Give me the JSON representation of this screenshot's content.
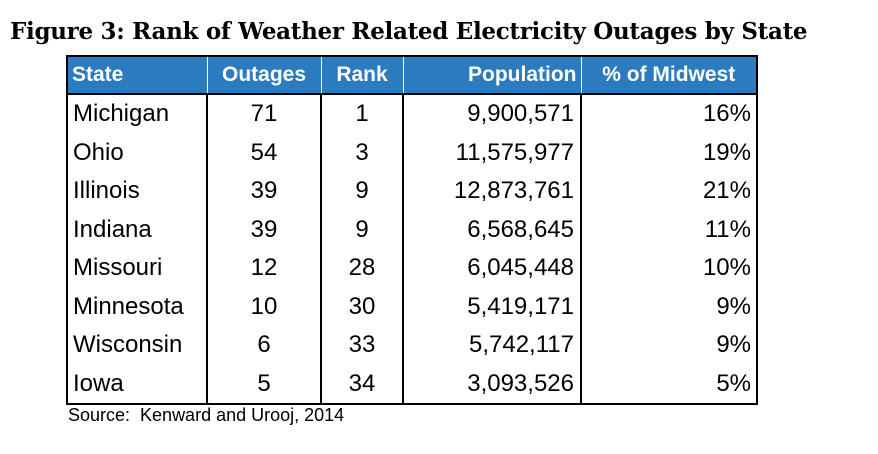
{
  "chart_data": {
    "type": "table",
    "title": "Figure 3: Rank of Weather Related Electricity Outages by State",
    "header_color": "#2d7bbf",
    "columns": [
      "State",
      "Outages",
      "Rank",
      "Population",
      "% of Midwest"
    ],
    "rows": [
      {
        "state": "Michigan",
        "outages": "71",
        "rank": "1",
        "population": "9,900,571",
        "pct": "16%"
      },
      {
        "state": "Ohio",
        "outages": "54",
        "rank": "3",
        "population": "11,575,977",
        "pct": "19%"
      },
      {
        "state": "Illinois",
        "outages": "39",
        "rank": "9",
        "population": "12,873,761",
        "pct": "21%"
      },
      {
        "state": "Indiana",
        "outages": "39",
        "rank": "9",
        "population": "6,568,645",
        "pct": "11%"
      },
      {
        "state": "Missouri",
        "outages": "12",
        "rank": "28",
        "population": "6,045,448",
        "pct": "10%"
      },
      {
        "state": "Minnesota",
        "outages": "10",
        "rank": "30",
        "population": "5,419,171",
        "pct": "9%"
      },
      {
        "state": "Wisconsin",
        "outages": "6",
        "rank": "33",
        "population": "5,742,117",
        "pct": "9%"
      },
      {
        "state": "Iowa",
        "outages": "5",
        "rank": "34",
        "population": "3,093,526",
        "pct": "5%"
      }
    ],
    "source": "Source:  Kenward and Urooj, 2014"
  }
}
